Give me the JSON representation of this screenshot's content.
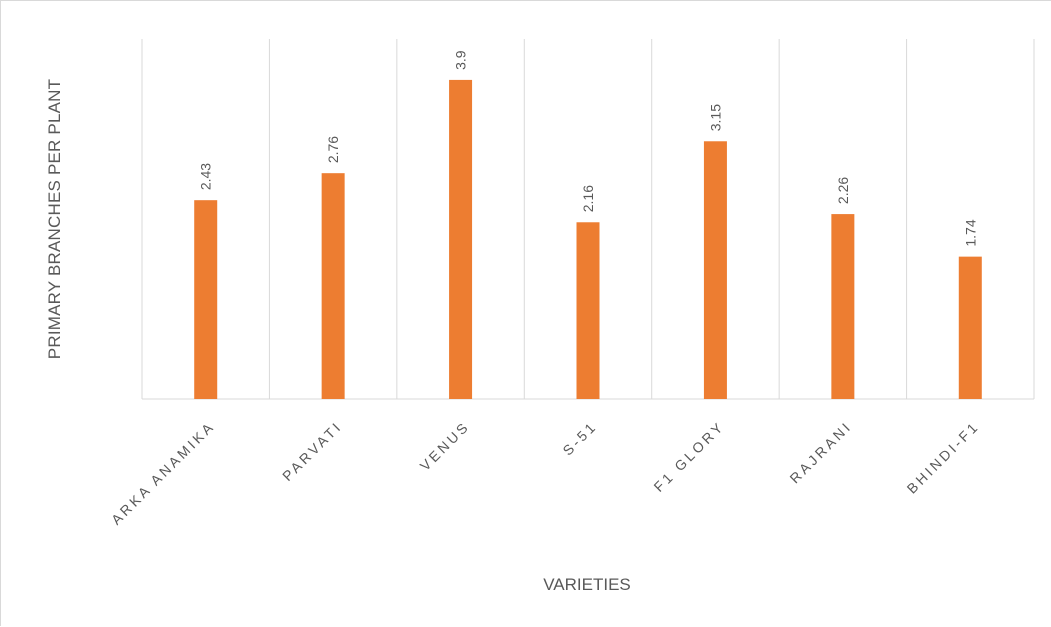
{
  "chart_data": {
    "type": "bar",
    "categories": [
      "ARKA ANAMIKA",
      "PARVATI",
      "VENUS",
      "S-51",
      "F1 GLORY",
      "RAJRANI",
      "BHINDI-F1"
    ],
    "values": [
      2.43,
      2.76,
      3.9,
      2.16,
      3.15,
      2.26,
      1.74
    ],
    "value_labels": [
      "2.43",
      "2.76",
      "3.9",
      "2.16",
      "3.15",
      "2.26",
      "1.74"
    ],
    "xlabel": "VARIETIES",
    "ylabel": "PRIMARY  BRANCHES PER PLANT",
    "ylim": [
      0,
      4.4
    ],
    "grid": "vertical",
    "bar_color": "#ED7D31",
    "grid_color": "#D9D9D9",
    "text_color": "#595959"
  }
}
